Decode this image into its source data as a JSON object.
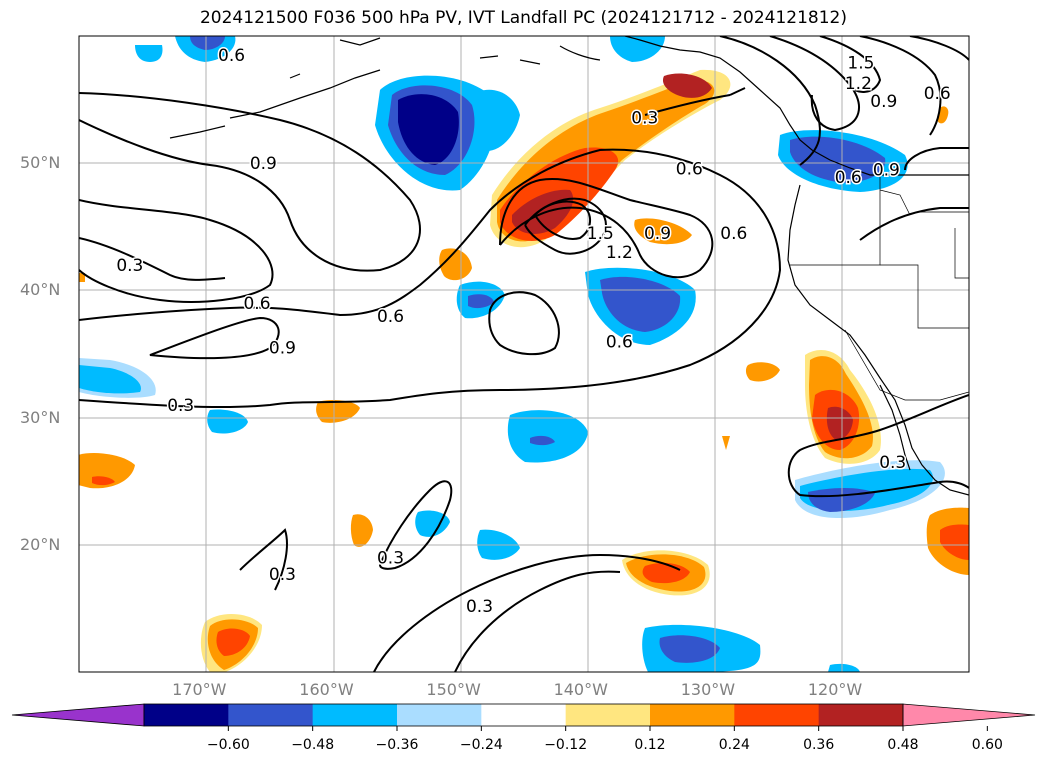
{
  "title": "2024121500 F036 500 hPa PV, IVT Landfall PC (2024121712 - 2024121812)",
  "map": {
    "lon_range": [
      -180,
      -110
    ],
    "lat_range": [
      10,
      60
    ],
    "lat_labels": [
      "50°N",
      "40°N",
      "30°N",
      "20°N"
    ],
    "lat_values": [
      50,
      40,
      30,
      20
    ],
    "lon_labels": [
      "170°W",
      "160°W",
      "150°W",
      "140°W",
      "130°W",
      "120°W"
    ],
    "lon_values": [
      -170,
      -160,
      -150,
      -140,
      -130,
      -120
    ],
    "grid": true,
    "contour_labels": [
      {
        "text": "0.6",
        "lon": -168,
        "lat": 58.5
      },
      {
        "text": "0.9",
        "lon": -165.5,
        "lat": 50.0
      },
      {
        "text": "0.3",
        "lon": -176.0,
        "lat": 42.0
      },
      {
        "text": "0.6",
        "lon": -166.0,
        "lat": 39.0
      },
      {
        "text": "0.9",
        "lon": -164.0,
        "lat": 35.5
      },
      {
        "text": "0.3",
        "lon": -172.0,
        "lat": 31.0
      },
      {
        "text": "0.6",
        "lon": -155.5,
        "lat": 38.0
      },
      {
        "text": "0.6",
        "lon": -137.5,
        "lat": 36.0
      },
      {
        "text": "1.5",
        "lon": -139.0,
        "lat": 44.5
      },
      {
        "text": "1.2",
        "lon": -137.5,
        "lat": 43.0
      },
      {
        "text": "0.9",
        "lon": -134.5,
        "lat": 44.5
      },
      {
        "text": "0.6",
        "lon": -128.5,
        "lat": 44.5
      },
      {
        "text": "0.6",
        "lon": -132.0,
        "lat": 49.6
      },
      {
        "text": "0.3",
        "lon": -135.5,
        "lat": 53.6
      },
      {
        "text": "1.5",
        "lon": -118.5,
        "lat": 57.9
      },
      {
        "text": "1.2",
        "lon": -118.7,
        "lat": 56.3
      },
      {
        "text": "0.9",
        "lon": -116.7,
        "lat": 54.9
      },
      {
        "text": "0.6",
        "lon": -112.5,
        "lat": 55.5
      },
      {
        "text": "0.9",
        "lon": -116.5,
        "lat": 49.5
      },
      {
        "text": "0.6",
        "lon": -119.5,
        "lat": 48.9
      },
      {
        "text": "0.3",
        "lon": -116.0,
        "lat": 26.5
      },
      {
        "text": "0.3",
        "lon": -155.5,
        "lat": 19.0
      },
      {
        "text": "0.3",
        "lon": -164.0,
        "lat": 17.7
      },
      {
        "text": "0.3",
        "lon": -148.5,
        "lat": 15.2
      }
    ]
  },
  "colorbar": {
    "ticks": [
      "−0.60",
      "−0.48",
      "−0.36",
      "−0.24",
      "−0.12",
      "0.12",
      "0.24",
      "0.36",
      "0.48",
      "0.60"
    ],
    "colors": [
      "#9933cc",
      "#000088",
      "#3355cc",
      "#00bbff",
      "#aaddff",
      "#ffffff",
      "#ffe680",
      "#ff9900",
      "#ff4400",
      "#b22222",
      "#ff88aa"
    ]
  }
}
